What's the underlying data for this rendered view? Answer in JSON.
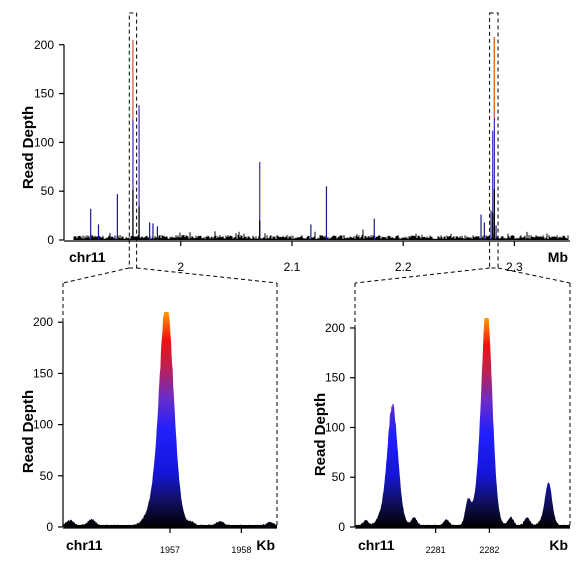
{
  "chart_data": [
    {
      "type": "area",
      "panel": "overview",
      "ylabel": "Read Depth",
      "xlabel_left": "chr11",
      "unit": "Mb",
      "xlim": [
        1.895,
        2.35
      ],
      "ylim": [
        0,
        210
      ],
      "yticks": [
        0,
        50,
        100,
        150,
        200
      ],
      "xticks": [
        2,
        2.1,
        2.2,
        2.3
      ],
      "xtick_labels": [
        "2",
        "2.1",
        "2.2",
        "2.3"
      ],
      "baseline": 3,
      "peaks": [
        {
          "x": 1.919,
          "y": 32
        },
        {
          "x": 1.926,
          "y": 16
        },
        {
          "x": 1.943,
          "y": 47
        },
        {
          "x": 1.957,
          "y": 205
        },
        {
          "x": 1.9625,
          "y": 138
        },
        {
          "x": 1.972,
          "y": 18
        },
        {
          "x": 1.975,
          "y": 17
        },
        {
          "x": 1.979,
          "y": 14
        },
        {
          "x": 2.071,
          "y": 80
        },
        {
          "x": 2.117,
          "y": 16
        },
        {
          "x": 2.131,
          "y": 55
        },
        {
          "x": 2.174,
          "y": 22
        },
        {
          "x": 2.27,
          "y": 26
        },
        {
          "x": 2.273,
          "y": 18
        },
        {
          "x": 2.279,
          "y": 30
        },
        {
          "x": 2.2805,
          "y": 112
        },
        {
          "x": 2.282,
          "y": 208
        },
        {
          "x": 2.2835,
          "y": 15
        }
      ],
      "zoom_windows": [
        [
          1.9555,
          1.9585
        ],
        [
          2.2795,
          2.2835
        ]
      ]
    },
    {
      "type": "area",
      "panel": "zoom-left",
      "ylabel": "Read Depth",
      "xlabel_left": "chr11",
      "unit": "Kb",
      "xlim": [
        1955.5,
        1958.5
      ],
      "ylim": [
        0,
        210
      ],
      "yticks": [
        0,
        50,
        100,
        150,
        200
      ],
      "xticks": [
        1957,
        1958
      ],
      "xtick_labels": [
        "1957",
        "1958"
      ],
      "peaks": [
        {
          "x": 1956.95,
          "y": 205,
          "w": 0.09
        }
      ],
      "bumps": [
        {
          "x": 1955.6,
          "y": 5
        },
        {
          "x": 1955.9,
          "y": 6
        },
        {
          "x": 1957.3,
          "y": 3
        },
        {
          "x": 1957.7,
          "y": 4
        },
        {
          "x": 1958.4,
          "y": 3
        }
      ]
    },
    {
      "type": "area",
      "panel": "zoom-right",
      "ylabel": "Read Depth",
      "xlabel_left": "chr11",
      "unit": "Kb",
      "xlim": [
        2279.5,
        2283.5
      ],
      "ylim": [
        0,
        210
      ],
      "yticks": [
        0,
        50,
        100,
        150,
        200
      ],
      "xticks": [
        2281,
        2282
      ],
      "xtick_labels": [
        "2281",
        "2282"
      ],
      "peaks": [
        {
          "x": 2280.2,
          "y": 112,
          "w": 0.09
        },
        {
          "x": 2281.95,
          "y": 208,
          "w": 0.09
        },
        {
          "x": 2283.1,
          "y": 40,
          "w": 0.06
        }
      ],
      "bumps": [
        {
          "x": 2279.7,
          "y": 5
        },
        {
          "x": 2280.6,
          "y": 8
        },
        {
          "x": 2281.2,
          "y": 6
        },
        {
          "x": 2281.6,
          "y": 22
        },
        {
          "x": 2282.4,
          "y": 8
        },
        {
          "x": 2282.7,
          "y": 8
        }
      ]
    }
  ],
  "colors": {
    "overview_line": "#000000",
    "overview_peak": "#1a1aa0",
    "gradient": [
      "#000000",
      "#0000ff",
      "#8a2be2",
      "#ff0000",
      "#ff8c00"
    ]
  }
}
